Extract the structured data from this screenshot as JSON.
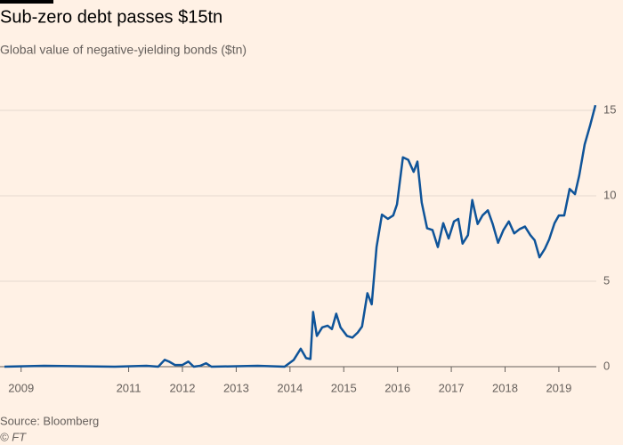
{
  "chart_data": {
    "type": "line",
    "title": "Sub-zero debt passes $15tn",
    "subtitle": "Global value of negative-yielding bonds ($tn)",
    "source": "Source: Bloomberg",
    "credit": "© FT",
    "x": [
      2008.69,
      2009.43,
      2010.75,
      2011.33,
      2011.55,
      2011.67,
      2011.75,
      2011.86,
      2012.0,
      2012.11,
      2012.21,
      2012.33,
      2012.44,
      2012.54,
      2013.4,
      2013.9,
      2014.07,
      2014.2,
      2014.3,
      2014.38,
      2014.43,
      2014.5,
      2014.6,
      2014.7,
      2014.78,
      2014.86,
      2014.94,
      2015.06,
      2015.16,
      2015.26,
      2015.34,
      2015.44,
      2015.52,
      2015.61,
      2015.71,
      2015.82,
      2015.92,
      2015.99,
      2016.1,
      2016.2,
      2016.3,
      2016.37,
      2016.45,
      2016.55,
      2016.65,
      2016.75,
      2016.85,
      2016.95,
      2017.05,
      2017.13,
      2017.21,
      2017.31,
      2017.39,
      2017.49,
      2017.58,
      2017.68,
      2017.77,
      2017.87,
      2017.97,
      2018.07,
      2018.17,
      2018.27,
      2018.37,
      2018.47,
      2018.55,
      2018.64,
      2018.74,
      2018.82,
      2018.92,
      2019.0,
      2019.1,
      2019.2,
      2019.3,
      2019.38,
      2019.48,
      2019.58,
      2019.68
    ],
    "series": [
      {
        "name": "Negative-yielding bonds",
        "color": "#0f5499",
        "values": [
          0,
          0.05,
          0,
          0.05,
          0,
          0.4,
          0.3,
          0.1,
          0.1,
          0.3,
          0,
          0.05,
          0.2,
          0,
          0.05,
          0,
          0.4,
          1.05,
          0.5,
          0.45,
          3.2,
          1.8,
          2.3,
          2.4,
          2.2,
          3.1,
          2.3,
          1.8,
          1.7,
          2.0,
          2.35,
          4.3,
          3.65,
          7.0,
          8.9,
          8.65,
          8.85,
          9.5,
          12.25,
          12.1,
          11.4,
          12.0,
          9.6,
          8.1,
          8.0,
          7.0,
          8.4,
          7.5,
          8.5,
          8.65,
          7.2,
          7.7,
          9.75,
          8.35,
          8.85,
          9.15,
          8.35,
          7.25,
          8.0,
          8.5,
          7.8,
          8.05,
          8.2,
          7.7,
          7.4,
          6.4,
          6.9,
          7.45,
          8.4,
          8.85,
          8.85,
          10.4,
          10.1,
          11.2,
          13.0,
          14.1,
          15.3
        ]
      }
    ],
    "xlim": [
      2008.69,
      2019.68
    ],
    "xticks": [
      2009,
      2011,
      2012,
      2013,
      2014,
      2015,
      2016,
      2017,
      2018,
      2019
    ],
    "ylim": [
      0,
      16
    ],
    "yticks": [
      0,
      5,
      10,
      15
    ],
    "grid": true
  }
}
